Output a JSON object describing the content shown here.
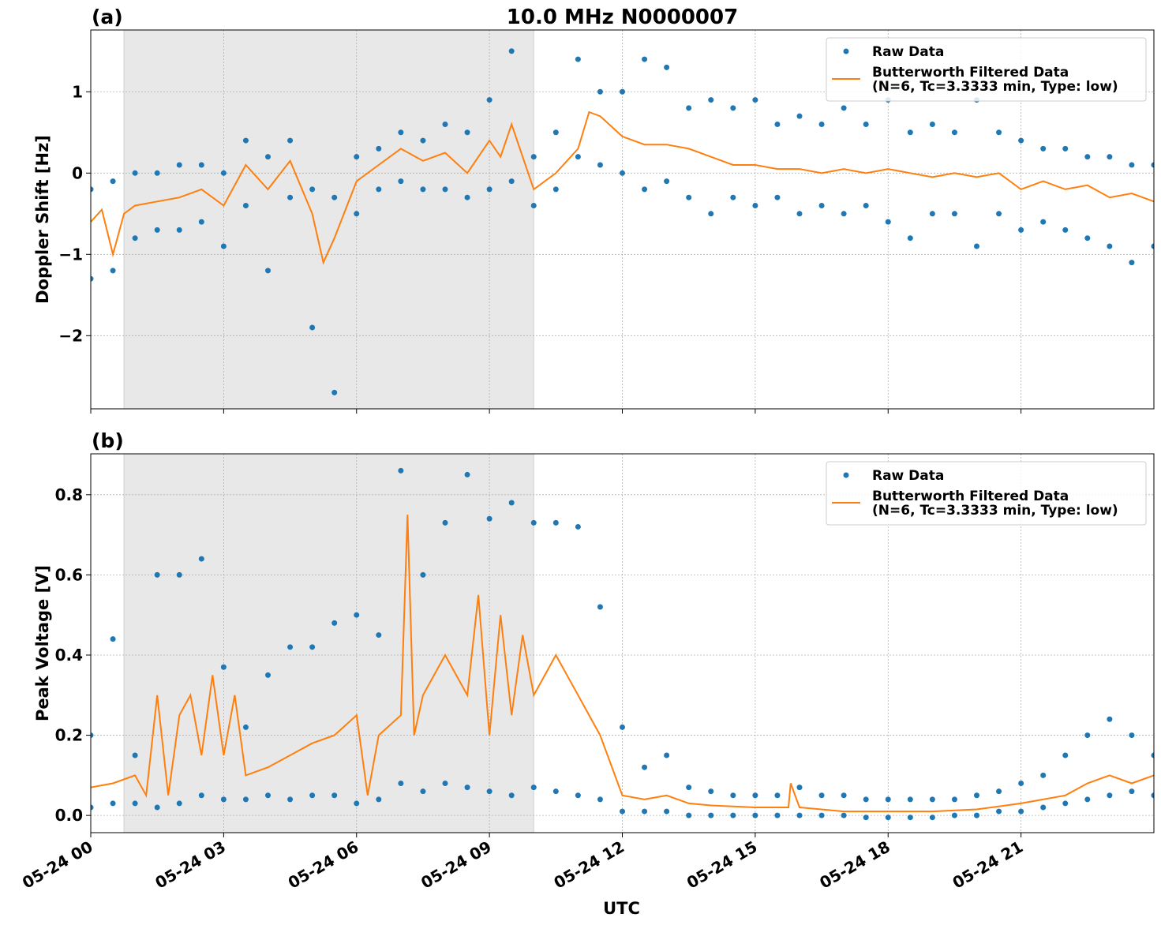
{
  "chart_data": [
    {
      "type": "line",
      "title": "10.0 MHz N0000007",
      "panel_label": "(a)",
      "ylabel": "Doppler Shift [Hz]",
      "xlim": [
        0,
        24
      ],
      "ylim": [
        -2.9,
        1.76
      ],
      "grid": true,
      "legend": "upper right",
      "shaded_span": [
        0.75,
        10.0
      ],
      "xticks": [
        0,
        3,
        6,
        9,
        12,
        15,
        18,
        21
      ],
      "yticks": [
        {
          "value": -2,
          "label": "−2"
        },
        {
          "value": -1,
          "label": "−1"
        },
        0,
        1
      ],
      "series": [
        {
          "name": "Raw Data",
          "kind": "scatter",
          "color": "#1f77b4",
          "x": [
            0,
            0,
            0.5,
            0.5,
            1,
            1,
            1.5,
            1.5,
            2,
            2,
            2.5,
            2.5,
            3,
            3,
            3.5,
            3.5,
            4,
            4,
            4.5,
            4.5,
            5,
            5,
            5.5,
            5.5,
            6,
            6,
            6.5,
            6.5,
            7,
            7,
            7.5,
            7.5,
            8,
            8,
            8.5,
            8.5,
            9,
            9,
            9.5,
            9.5,
            10,
            10,
            10.5,
            10.5,
            11,
            11,
            11.5,
            11.5,
            12,
            12,
            12.5,
            12.5,
            13,
            13,
            13.5,
            13.5,
            14,
            14,
            14.5,
            14.5,
            15,
            15,
            15.5,
            15.5,
            16,
            16,
            16.5,
            16.5,
            17,
            17,
            17.5,
            17.5,
            18,
            18,
            18.5,
            18.5,
            19,
            19,
            19.5,
            19.5,
            20,
            20,
            20.5,
            20.5,
            21,
            21,
            21.5,
            21.5,
            22,
            22,
            22.5,
            22.5,
            23,
            23,
            23.5,
            23.5,
            24,
            24
          ],
          "values": [
            -0.2,
            -1.3,
            -0.1,
            -1.2,
            0.0,
            -0.8,
            0.0,
            -0.7,
            0.1,
            -0.7,
            0.1,
            -0.6,
            0.0,
            -0.9,
            0.4,
            -0.4,
            0.2,
            -1.2,
            0.4,
            -0.3,
            -0.2,
            -1.9,
            -0.3,
            -2.7,
            0.2,
            -0.5,
            0.3,
            -0.2,
            0.5,
            -0.1,
            0.4,
            -0.2,
            0.6,
            -0.2,
            0.5,
            -0.3,
            0.9,
            -0.2,
            1.5,
            -0.1,
            0.2,
            -0.4,
            0.5,
            -0.2,
            1.4,
            0.2,
            1.0,
            0.1,
            1.0,
            0.0,
            1.4,
            -0.2,
            1.3,
            -0.1,
            0.8,
            -0.3,
            0.9,
            -0.5,
            0.8,
            -0.3,
            0.9,
            -0.4,
            0.6,
            -0.3,
            0.7,
            -0.5,
            0.6,
            -0.4,
            0.8,
            -0.5,
            0.6,
            -0.4,
            0.9,
            -0.6,
            0.5,
            -0.8,
            0.6,
            -0.5,
            0.5,
            -0.5,
            0.9,
            -0.9,
            0.5,
            -0.5,
            0.4,
            -0.7,
            0.3,
            -0.6,
            0.3,
            -0.7,
            0.2,
            -0.8,
            0.2,
            -0.9,
            0.1,
            -1.1,
            0.1,
            -0.9
          ]
        },
        {
          "name": "Butterworth Filtered Data\n(N=6, Tc=3.3333 min, Type: low)",
          "kind": "line",
          "color": "#ff7f0e",
          "x": [
            0,
            0.25,
            0.5,
            0.75,
            1,
            1.5,
            2,
            2.5,
            3,
            3.5,
            4,
            4.5,
            5,
            5.25,
            5.5,
            6,
            6.5,
            7,
            7.5,
            8,
            8.5,
            9,
            9.25,
            9.5,
            9.75,
            10,
            10.5,
            11,
            11.25,
            11.5,
            12,
            12.5,
            13,
            13.5,
            14,
            14.5,
            15,
            15.5,
            16,
            16.5,
            17,
            17.5,
            18,
            18.5,
            19,
            19.5,
            20,
            20.5,
            21,
            21.5,
            22,
            22.5,
            23,
            23.5,
            24
          ],
          "values": [
            -0.6,
            -0.45,
            -1.0,
            -0.5,
            -0.4,
            -0.35,
            -0.3,
            -0.2,
            -0.4,
            0.1,
            -0.2,
            0.15,
            -0.5,
            -1.1,
            -0.8,
            -0.1,
            0.1,
            0.3,
            0.15,
            0.25,
            0.0,
            0.4,
            0.2,
            0.6,
            0.2,
            -0.2,
            0.0,
            0.3,
            0.75,
            0.7,
            0.45,
            0.35,
            0.35,
            0.3,
            0.2,
            0.1,
            0.1,
            0.05,
            0.05,
            0.0,
            0.05,
            0.0,
            0.05,
            0.0,
            -0.05,
            0.0,
            -0.05,
            0.0,
            -0.2,
            -0.1,
            -0.2,
            -0.15,
            -0.3,
            -0.25,
            -0.35
          ]
        }
      ]
    },
    {
      "type": "line",
      "panel_label": "(b)",
      "ylabel": "Peak Voltage [V]",
      "xlabel": "UTC",
      "xlim": [
        0,
        24
      ],
      "ylim": [
        -0.043,
        0.902
      ],
      "grid": true,
      "legend": "upper right",
      "shaded_span": [
        0.75,
        10.0
      ],
      "xticks": [
        {
          "value": 0,
          "label": "05-24 00"
        },
        {
          "value": 3,
          "label": "05-24 03"
        },
        {
          "value": 6,
          "label": "05-24 06"
        },
        {
          "value": 9,
          "label": "05-24 09"
        },
        {
          "value": 12,
          "label": "05-24 12"
        },
        {
          "value": 15,
          "label": "05-24 15"
        },
        {
          "value": 18,
          "label": "05-24 18"
        },
        {
          "value": 21,
          "label": "05-24 21"
        }
      ],
      "yticks": [
        {
          "value": 0,
          "label": "0.0"
        },
        0.2,
        0.4,
        0.6,
        0.8
      ],
      "series": [
        {
          "name": "Raw Data",
          "kind": "scatter",
          "color": "#1f77b4",
          "x": [
            0,
            0,
            0.5,
            0.5,
            1,
            1,
            1.5,
            1.5,
            2,
            2,
            2.5,
            2.5,
            3,
            3,
            3.5,
            3.5,
            4,
            4,
            4.5,
            4.5,
            5,
            5,
            5.5,
            5.5,
            6,
            6,
            6.5,
            6.5,
            7,
            7,
            7.5,
            7.5,
            8,
            8,
            8.5,
            8.5,
            9,
            9,
            9.5,
            9.5,
            10,
            10,
            10.5,
            10.5,
            11,
            11,
            11.5,
            11.5,
            12,
            12,
            12.5,
            12.5,
            13,
            13,
            13.5,
            13.5,
            14,
            14,
            14.5,
            14.5,
            15,
            15,
            15.5,
            15.5,
            16,
            16,
            16.5,
            16.5,
            17,
            17,
            17.5,
            17.5,
            18,
            18,
            18.5,
            18.5,
            19,
            19,
            19.5,
            19.5,
            20,
            20,
            20.5,
            20.5,
            21,
            21,
            21.5,
            21.5,
            22,
            22,
            22.5,
            22.5,
            23,
            23,
            23.5,
            23.5,
            24,
            24
          ],
          "values": [
            0.2,
            0.02,
            0.44,
            0.03,
            0.15,
            0.03,
            0.6,
            0.02,
            0.6,
            0.03,
            0.64,
            0.05,
            0.37,
            0.04,
            0.22,
            0.04,
            0.35,
            0.05,
            0.42,
            0.04,
            0.42,
            0.05,
            0.48,
            0.05,
            0.5,
            0.03,
            0.45,
            0.04,
            0.86,
            0.08,
            0.6,
            0.06,
            0.73,
            0.08,
            0.85,
            0.07,
            0.74,
            0.06,
            0.78,
            0.05,
            0.73,
            0.07,
            0.73,
            0.06,
            0.72,
            0.05,
            0.52,
            0.04,
            0.22,
            0.01,
            0.12,
            0.01,
            0.15,
            0.01,
            0.07,
            0.0,
            0.06,
            0.0,
            0.05,
            0.0,
            0.05,
            0.0,
            0.05,
            0.0,
            0.07,
            0.0,
            0.05,
            0.0,
            0.05,
            0.0,
            0.04,
            -0.005,
            0.04,
            -0.005,
            0.04,
            -0.005,
            0.04,
            -0.005,
            0.04,
            0.0,
            0.05,
            0.0,
            0.06,
            0.01,
            0.08,
            0.01,
            0.1,
            0.02,
            0.15,
            0.03,
            0.2,
            0.04,
            0.24,
            0.05,
            0.2,
            0.06,
            0.15,
            0.05
          ]
        },
        {
          "name": "Butterworth Filtered Data\n(N=6, Tc=3.3333 min, Type: low)",
          "kind": "line",
          "color": "#ff7f0e",
          "x": [
            0,
            0.5,
            1,
            1.25,
            1.5,
            1.75,
            2,
            2.25,
            2.5,
            2.75,
            3,
            3.25,
            3.5,
            4,
            4.5,
            5,
            5.5,
            6,
            6.25,
            6.5,
            7,
            7.15,
            7.3,
            7.5,
            8,
            8.5,
            8.75,
            9,
            9.25,
            9.5,
            9.75,
            10,
            10.5,
            11,
            11.5,
            12,
            12.5,
            13,
            13.5,
            14,
            15,
            15.75,
            15.8,
            16,
            17,
            18,
            19,
            20,
            21,
            22,
            22.5,
            23,
            23.5,
            24
          ],
          "values": [
            0.07,
            0.08,
            0.1,
            0.05,
            0.3,
            0.05,
            0.25,
            0.3,
            0.15,
            0.35,
            0.15,
            0.3,
            0.1,
            0.12,
            0.15,
            0.18,
            0.2,
            0.25,
            0.05,
            0.2,
            0.25,
            0.75,
            0.2,
            0.3,
            0.4,
            0.3,
            0.55,
            0.2,
            0.5,
            0.25,
            0.45,
            0.3,
            0.4,
            0.3,
            0.2,
            0.05,
            0.04,
            0.05,
            0.03,
            0.025,
            0.02,
            0.02,
            0.08,
            0.02,
            0.01,
            0.01,
            0.01,
            0.015,
            0.03,
            0.05,
            0.08,
            0.1,
            0.08,
            0.1
          ]
        }
      ]
    }
  ]
}
